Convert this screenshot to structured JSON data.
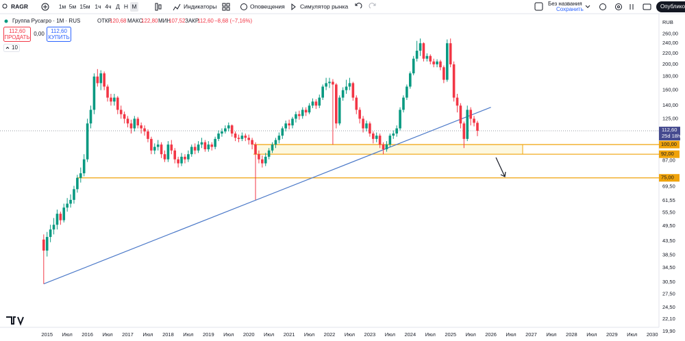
{
  "toolbar": {
    "symbol": "RAGR",
    "intervals": [
      "1м",
      "5м",
      "15м",
      "1ч",
      "4ч",
      "Д",
      "Н",
      "М"
    ],
    "indicators": "Индикаторы",
    "alerts": "Оповещения",
    "simulator": "Симулятор рынка",
    "layout_name": "Без названия",
    "save_state": "Сохранить",
    "publish": "Опубликовать"
  },
  "legend": {
    "open_label": "ОТКР",
    "open": "120,68",
    "high_label": "МАКС",
    "high": "122,80",
    "low_label": "МИН",
    "low": "107,52",
    "close_label": "ЗАКР",
    "close": "112,60",
    "change": "−8,68 (−7,16%)",
    "collapsed": "10"
  },
  "trade": {
    "sell_price": "112,60",
    "sell": "ПРОДАТЬ",
    "spread": "0,00",
    "buy_price": "112,60",
    "buy": "КУПИТЬ"
  },
  "chart_data": {
    "type": "candlestick",
    "title": "Группа Русагро · 1М · RUS",
    "currency": "RUB",
    "log_scale": true,
    "grid": false,
    "up_color": "#089981",
    "down_color": "#f23645",
    "x": [
      "2014-12",
      "2015-01",
      "2015-02",
      "2015-03",
      "2015-04",
      "2015-05",
      "2015-06",
      "2015-07",
      "2015-08",
      "2015-09",
      "2015-10",
      "2015-11",
      "2015-12",
      "2016-01",
      "2016-02",
      "2016-03",
      "2016-04",
      "2016-05",
      "2016-06",
      "2016-07",
      "2016-08",
      "2016-09",
      "2016-10",
      "2016-11",
      "2016-12",
      "2017-01",
      "2017-02",
      "2017-03",
      "2017-04",
      "2017-05",
      "2017-06",
      "2017-07",
      "2017-08",
      "2017-09",
      "2017-10",
      "2017-11",
      "2017-12",
      "2018-01",
      "2018-02",
      "2018-03",
      "2018-04",
      "2018-05",
      "2018-06",
      "2018-07",
      "2018-08",
      "2018-09",
      "2018-10",
      "2018-11",
      "2018-12",
      "2019-01",
      "2019-02",
      "2019-03",
      "2019-04",
      "2019-05",
      "2019-06",
      "2019-07",
      "2019-08",
      "2019-09",
      "2019-10",
      "2019-11",
      "2019-12",
      "2020-01",
      "2020-02",
      "2020-03",
      "2020-04",
      "2020-05",
      "2020-06",
      "2020-07",
      "2020-08",
      "2020-09",
      "2020-10",
      "2020-11",
      "2020-12",
      "2021-01",
      "2021-02",
      "2021-03",
      "2021-04",
      "2021-05",
      "2021-06",
      "2021-07",
      "2021-08",
      "2021-09",
      "2021-10",
      "2021-11",
      "2021-12",
      "2022-01",
      "2022-02",
      "2022-03",
      "2022-04",
      "2022-05",
      "2022-06",
      "2022-07",
      "2022-08",
      "2022-09",
      "2022-10",
      "2022-11",
      "2022-12",
      "2023-01",
      "2023-02",
      "2023-03",
      "2023-04",
      "2023-05",
      "2023-06",
      "2023-07",
      "2023-08",
      "2023-09",
      "2023-10",
      "2023-11",
      "2023-12",
      "2024-01",
      "2024-02",
      "2024-03",
      "2024-04",
      "2024-05",
      "2024-06",
      "2024-07",
      "2024-08",
      "2024-09",
      "2024-10",
      "2024-11",
      "2024-12",
      "2025-01",
      "2025-02",
      "2025-03",
      "2025-04",
      "2025-05",
      "2025-06",
      "2025-07",
      "2025-08",
      "2025-09"
    ],
    "open": [
      44,
      40,
      45,
      48,
      50,
      55,
      52,
      58,
      60,
      62,
      68,
      75,
      78,
      88,
      120,
      135,
      180,
      170,
      185,
      165,
      150,
      145,
      150,
      135,
      130,
      125,
      120,
      115,
      125,
      118,
      115,
      112,
      105,
      95,
      98,
      100,
      92,
      88,
      100,
      95,
      88,
      85,
      90,
      88,
      92,
      98,
      95,
      100,
      102,
      96,
      100,
      98,
      105,
      110,
      112,
      115,
      118,
      110,
      106,
      105,
      108,
      106,
      104,
      100,
      92,
      88,
      85,
      90,
      95,
      100,
      104,
      108,
      115,
      120,
      118,
      125,
      130,
      128,
      135,
      132,
      140,
      145,
      140,
      150,
      165,
      170,
      172,
      168,
      120,
      150,
      160,
      165,
      170,
      150,
      135,
      125,
      115,
      120,
      110,
      105,
      108,
      100,
      96,
      100,
      108,
      110,
      115,
      135,
      150,
      165,
      185,
      210,
      225,
      240,
      210,
      215,
      205,
      200,
      205,
      195,
      175,
      240,
      200,
      150,
      140,
      120,
      105,
      135,
      125,
      120.68
    ],
    "high": [
      46,
      47,
      50,
      53,
      57,
      56,
      60,
      63,
      65,
      70,
      77,
      82,
      92,
      125,
      140,
      185,
      192,
      190,
      188,
      168,
      155,
      155,
      152,
      140,
      133,
      128,
      124,
      128,
      127,
      121,
      118,
      114,
      107,
      101,
      104,
      102,
      95,
      103,
      104,
      97,
      90,
      93,
      92,
      95,
      100,
      101,
      103,
      106,
      104,
      103,
      102,
      107,
      113,
      115,
      118,
      121,
      119,
      112,
      109,
      111,
      110,
      109,
      106,
      102,
      95,
      91,
      93,
      97,
      102,
      106,
      111,
      117,
      123,
      124,
      127,
      133,
      134,
      138,
      138,
      143,
      149,
      148,
      154,
      168,
      178,
      178,
      176,
      170,
      153,
      164,
      175,
      178,
      172,
      153,
      138,
      128,
      123,
      122,
      112,
      111,
      110,
      102,
      103,
      110,
      113,
      118,
      138,
      153,
      168,
      188,
      215,
      245,
      250,
      242,
      220,
      218,
      210,
      209,
      208,
      198,
      248,
      250,
      205,
      155,
      143,
      122,
      140,
      138,
      128,
      122.8
    ],
    "low": [
      30,
      38,
      43,
      46,
      48,
      50,
      51,
      56,
      58,
      60,
      66,
      72,
      76,
      86,
      115,
      130,
      165,
      160,
      160,
      145,
      140,
      140,
      130,
      125,
      120,
      116,
      110,
      112,
      115,
      110,
      108,
      102,
      92,
      92,
      95,
      89,
      86,
      86,
      92,
      85,
      82,
      83,
      85,
      86,
      90,
      92,
      93,
      97,
      94,
      94,
      95,
      96,
      103,
      107,
      110,
      112,
      107,
      103,
      102,
      103,
      103,
      100,
      96,
      62,
      85,
      82,
      83,
      88,
      93,
      97,
      101,
      105,
      112,
      114,
      115,
      121,
      124,
      125,
      128,
      130,
      137,
      136,
      137,
      147,
      160,
      163,
      100,
      115,
      118,
      146,
      155,
      160,
      146,
      130,
      120,
      111,
      112,
      107,
      101,
      102,
      97,
      92,
      94,
      98,
      105,
      107,
      113,
      132,
      147,
      162,
      182,
      205,
      215,
      205,
      205,
      200,
      195,
      195,
      190,
      170,
      172,
      195,
      145,
      132,
      115,
      97,
      103,
      118,
      117,
      107.52
    ],
    "close": [
      40,
      45,
      48,
      50,
      55,
      52,
      58,
      60,
      62,
      68,
      75,
      78,
      88,
      120,
      135,
      180,
      170,
      185,
      165,
      150,
      145,
      150,
      135,
      130,
      125,
      120,
      115,
      125,
      118,
      115,
      112,
      105,
      95,
      98,
      100,
      92,
      88,
      100,
      95,
      88,
      85,
      90,
      88,
      92,
      98,
      95,
      100,
      102,
      96,
      100,
      98,
      105,
      110,
      112,
      115,
      118,
      110,
      106,
      105,
      108,
      106,
      104,
      100,
      92,
      88,
      85,
      90,
      95,
      100,
      104,
      108,
      115,
      120,
      118,
      125,
      130,
      128,
      135,
      132,
      140,
      145,
      140,
      150,
      165,
      170,
      172,
      168,
      120,
      150,
      160,
      165,
      170,
      150,
      135,
      125,
      115,
      120,
      110,
      105,
      108,
      100,
      96,
      100,
      108,
      110,
      115,
      135,
      150,
      165,
      185,
      210,
      225,
      240,
      210,
      215,
      205,
      200,
      205,
      195,
      175,
      240,
      200,
      150,
      140,
      120,
      105,
      135,
      125,
      120.68,
      112.6
    ],
    "xlim": [
      "2013-11",
      "2030-03"
    ],
    "xticks": [
      {
        "value": "2015-01",
        "label": "2015"
      },
      {
        "value": "2015-07",
        "label": "Июл"
      },
      {
        "value": "2016-01",
        "label": "2016"
      },
      {
        "value": "2016-07",
        "label": "Июл"
      },
      {
        "value": "2017-01",
        "label": "2017"
      },
      {
        "value": "2017-07",
        "label": "Июл"
      },
      {
        "value": "2018-01",
        "label": "2018"
      },
      {
        "value": "2018-07",
        "label": "Июл"
      },
      {
        "value": "2019-01",
        "label": "2019"
      },
      {
        "value": "2019-07",
        "label": "Июл"
      },
      {
        "value": "2020-01",
        "label": "2020"
      },
      {
        "value": "2020-07",
        "label": "Июл"
      },
      {
        "value": "2021-01",
        "label": "2021"
      },
      {
        "value": "2021-07",
        "label": "Июл"
      },
      {
        "value": "2022-01",
        "label": "2022"
      },
      {
        "value": "2022-07",
        "label": "Июл"
      },
      {
        "value": "2023-01",
        "label": "2023"
      },
      {
        "value": "2023-07",
        "label": "Июл"
      },
      {
        "value": "2024-01",
        "label": "2024"
      },
      {
        "value": "2024-07",
        "label": "Июл"
      },
      {
        "value": "2025-01",
        "label": "2025"
      },
      {
        "value": "2025-07",
        "label": "Июл"
      },
      {
        "value": "2026-01",
        "label": "2026"
      },
      {
        "value": "2026-07",
        "label": "Июл"
      },
      {
        "value": "2027-01",
        "label": "2027"
      },
      {
        "value": "2027-07",
        "label": "Июл"
      },
      {
        "value": "2028-01",
        "label": "2028"
      },
      {
        "value": "2028-07",
        "label": "Июл"
      },
      {
        "value": "2029-01",
        "label": "2029"
      },
      {
        "value": "2029-07",
        "label": "Июл"
      },
      {
        "value": "2030-01",
        "label": "2030"
      }
    ],
    "ylim": [
      19.2,
      292
    ],
    "yticks": [
      {
        "value": 260,
        "label": "260,00"
      },
      {
        "value": 240,
        "label": "240,00"
      },
      {
        "value": 220,
        "label": "220,00"
      },
      {
        "value": 200,
        "label": "200,00"
      },
      {
        "value": 180,
        "label": "180,00"
      },
      {
        "value": 160,
        "label": "160,00"
      },
      {
        "value": 140,
        "label": "140,00"
      },
      {
        "value": 125,
        "label": "125,00"
      },
      {
        "value": 87,
        "label": "87,00"
      },
      {
        "value": 69.5,
        "label": "69,50"
      },
      {
        "value": 61.55,
        "label": "61,55"
      },
      {
        "value": 55.5,
        "label": "55,50"
      },
      {
        "value": 49.5,
        "label": "49,50"
      },
      {
        "value": 43.5,
        "label": "43,50"
      },
      {
        "value": 38.5,
        "label": "38,50"
      },
      {
        "value": 34.5,
        "label": "34,50"
      },
      {
        "value": 30.5,
        "label": "30,50"
      },
      {
        "value": 27.5,
        "label": "27,50"
      },
      {
        "value": 24.5,
        "label": "24,50"
      },
      {
        "value": 22.1,
        "label": "22,10"
      },
      {
        "value": 19.9,
        "label": "19,90"
      }
    ],
    "levels": [
      {
        "value": 100,
        "label": "100,00"
      },
      {
        "value": 92,
        "label": "92,00"
      },
      {
        "value": 75,
        "label": "75,00"
      }
    ],
    "level_color": "#f0a30a",
    "last_price": {
      "value": 112.6,
      "label": "112,60"
    },
    "countdown": "25d 18h",
    "last_price_color": "#454a8f",
    "trendline": {
      "x": [
        "2014-12",
        "2026-01"
      ],
      "values": [
        30,
        138
      ],
      "color": "#4a78c8"
    }
  }
}
